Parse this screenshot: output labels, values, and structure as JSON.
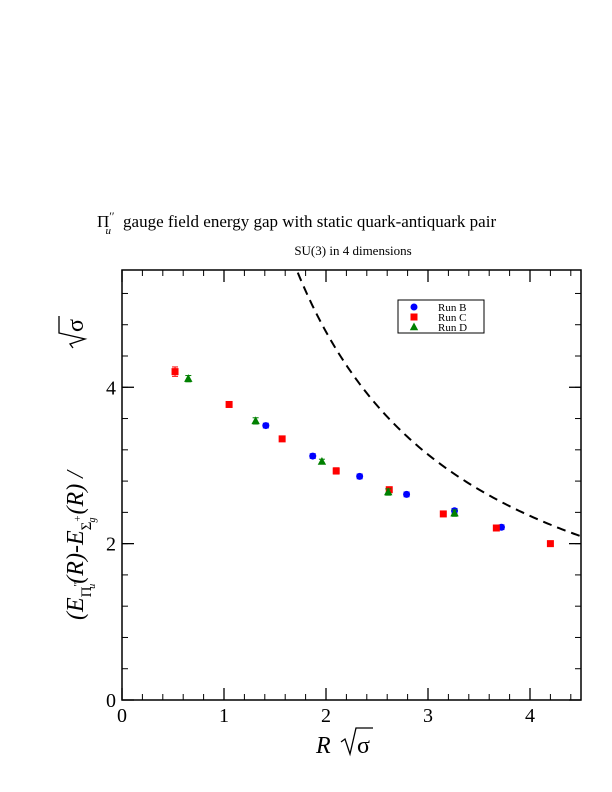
{
  "chart_data": {
    "type": "scatter",
    "title_symbol": "Π",
    "title_symbol_sub": "u",
    "title_symbol_sup": "′′",
    "title_text": "gauge field energy gap with static quark-antiquark pair",
    "subtitle": "SU(3) in 4 dimensions",
    "xlabel": {
      "main": "R",
      "sqrt_symbol": "σ"
    },
    "ylabel": {
      "open": "(E",
      "sub1": "Π",
      "sub1_sub": "u",
      "sub1_sup": "′′",
      "mid": "(R)-E",
      "sub2": "Σ",
      "sub2_sub": "g",
      "sub2_sup": "+",
      "close": "(R) / ",
      "sqrt_symbol": "σ"
    },
    "xlim": [
      0,
      4.5
    ],
    "ylim": [
      0,
      5.5
    ],
    "x_ticks": [
      0,
      1,
      2,
      3,
      4
    ],
    "x_tick_labels": [
      "0",
      "1",
      "2",
      "3",
      "4"
    ],
    "y_ticks": [
      0,
      2,
      4
    ],
    "y_tick_labels": [
      "0",
      "2",
      "4"
    ],
    "x_minor_step": 0.2,
    "y_minor_step": 0.4,
    "grid": false,
    "legend_position": "top-right",
    "series": [
      {
        "name": "Run B",
        "color": "#0000ff",
        "marker": "circle",
        "points": [
          {
            "x": 1.41,
            "y": 3.51,
            "err": 0.03
          },
          {
            "x": 1.87,
            "y": 3.12,
            "err": 0.03
          },
          {
            "x": 2.33,
            "y": 2.86,
            "err": 0.03
          },
          {
            "x": 2.79,
            "y": 2.63,
            "err": 0.03
          },
          {
            "x": 3.26,
            "y": 2.42,
            "err": 0.03
          },
          {
            "x": 3.72,
            "y": 2.21,
            "err": 0.03
          }
        ]
      },
      {
        "name": "Run C",
        "color": "#ff0000",
        "marker": "square",
        "points": [
          {
            "x": 0.52,
            "y": 4.2,
            "err": 0.06
          },
          {
            "x": 1.05,
            "y": 3.78,
            "err": 0.03
          },
          {
            "x": 1.57,
            "y": 3.34,
            "err": 0.03
          },
          {
            "x": 2.1,
            "y": 2.93,
            "err": 0.04
          },
          {
            "x": 2.62,
            "y": 2.69,
            "err": 0.03
          },
          {
            "x": 3.15,
            "y": 2.38,
            "err": 0.03
          },
          {
            "x": 3.67,
            "y": 2.2,
            "err": 0.03
          },
          {
            "x": 4.2,
            "y": 2.0,
            "err": 0.03
          }
        ]
      },
      {
        "name": "Run D",
        "color": "#008000",
        "marker": "triangle",
        "points": [
          {
            "x": 0.65,
            "y": 4.11,
            "err": 0.04
          },
          {
            "x": 1.31,
            "y": 3.57,
            "err": 0.04
          },
          {
            "x": 1.96,
            "y": 3.05,
            "err": 0.03
          },
          {
            "x": 2.61,
            "y": 2.66,
            "err": 0.04
          },
          {
            "x": 3.26,
            "y": 2.39,
            "err": 0.04
          }
        ]
      }
    ],
    "dashed_curve": {
      "color": "#000000",
      "coefficient": 9.42,
      "x_start": 1.7,
      "x_end": 4.5
    }
  }
}
